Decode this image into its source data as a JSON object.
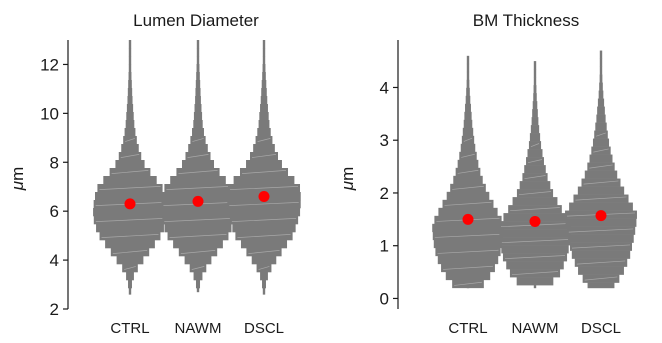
{
  "chart_data": [
    {
      "type": "violin",
      "title": "Lumen Diameter",
      "ylabel_symbol": "μ",
      "ylabel_unit": "m",
      "ylim": [
        2,
        13
      ],
      "yticks": [
        2,
        4,
        6,
        8,
        10,
        12
      ],
      "categories": [
        "CTRL",
        "NAWM",
        "DSCL"
      ],
      "grid": false,
      "colors": {
        "violin": "#7a7a7a",
        "mean_marker": "#ff0000"
      },
      "series": [
        {
          "category": "CTRL",
          "mean": 6.3,
          "profile": [
            [
              2.6,
              0.02
            ],
            [
              3.0,
              0.05
            ],
            [
              3.5,
              0.13
            ],
            [
              4.0,
              0.36
            ],
            [
              4.5,
              0.6
            ],
            [
              5.0,
              0.83
            ],
            [
              5.5,
              0.97
            ],
            [
              6.0,
              1.0
            ],
            [
              6.5,
              0.97
            ],
            [
              7.0,
              0.87
            ],
            [
              7.5,
              0.6
            ],
            [
              8.0,
              0.36
            ],
            [
              8.5,
              0.25
            ],
            [
              9.0,
              0.17
            ],
            [
              9.5,
              0.12
            ],
            [
              10.5,
              0.07
            ],
            [
              11.5,
              0.04
            ],
            [
              12.5,
              0.02
            ],
            [
              13.0,
              0.01
            ]
          ]
        },
        {
          "category": "NAWM",
          "mean": 6.4,
          "profile": [
            [
              2.7,
              0.02
            ],
            [
              3.0,
              0.05
            ],
            [
              3.5,
              0.15
            ],
            [
              4.0,
              0.36
            ],
            [
              4.5,
              0.6
            ],
            [
              5.0,
              0.83
            ],
            [
              5.5,
              0.95
            ],
            [
              6.0,
              1.0
            ],
            [
              6.5,
              0.98
            ],
            [
              7.0,
              0.9
            ],
            [
              7.5,
              0.63
            ],
            [
              8.0,
              0.4
            ],
            [
              8.5,
              0.28
            ],
            [
              9.0,
              0.19
            ],
            [
              9.5,
              0.13
            ],
            [
              10.5,
              0.08
            ],
            [
              11.5,
              0.05
            ],
            [
              12.5,
              0.02
            ],
            [
              13.0,
              0.01
            ]
          ]
        },
        {
          "category": "DSCL",
          "mean": 6.6,
          "profile": [
            [
              2.6,
              0.02
            ],
            [
              3.0,
              0.05
            ],
            [
              3.5,
              0.13
            ],
            [
              4.0,
              0.33
            ],
            [
              4.5,
              0.55
            ],
            [
              5.0,
              0.78
            ],
            [
              5.5,
              0.9
            ],
            [
              6.0,
              0.98
            ],
            [
              6.5,
              1.0
            ],
            [
              7.0,
              0.97
            ],
            [
              7.5,
              0.7
            ],
            [
              8.0,
              0.45
            ],
            [
              8.5,
              0.31
            ],
            [
              9.0,
              0.21
            ],
            [
              9.5,
              0.15
            ],
            [
              10.5,
              0.09
            ],
            [
              11.5,
              0.05
            ],
            [
              12.5,
              0.02
            ],
            [
              13.0,
              0.01
            ]
          ]
        }
      ]
    },
    {
      "type": "violin",
      "title": "BM Thickness",
      "ylabel_symbol": "μ",
      "ylabel_unit": "m",
      "ylim": [
        -0.2,
        4.9
      ],
      "yticks": [
        0,
        1,
        2,
        3,
        4
      ],
      "categories": [
        "CTRL",
        "NAWM",
        "DSCL"
      ],
      "grid": false,
      "colors": {
        "violin": "#7a7a7a",
        "mean_marker": "#ff0000"
      },
      "series": [
        {
          "category": "CTRL",
          "mean": 1.5,
          "profile": [
            [
              0.2,
              0.35
            ],
            [
              0.5,
              0.7
            ],
            [
              0.8,
              0.88
            ],
            [
              1.1,
              0.97
            ],
            [
              1.4,
              1.0
            ],
            [
              1.7,
              0.78
            ],
            [
              2.0,
              0.55
            ],
            [
              2.3,
              0.38
            ],
            [
              2.6,
              0.27
            ],
            [
              2.9,
              0.19
            ],
            [
              3.3,
              0.12
            ],
            [
              3.8,
              0.06
            ],
            [
              4.3,
              0.02
            ],
            [
              4.6,
              0.01
            ]
          ]
        },
        {
          "category": "NAWM",
          "mean": 1.46,
          "profile": [
            [
              0.2,
              0.35
            ],
            [
              0.5,
              0.72
            ],
            [
              0.8,
              0.9
            ],
            [
              1.1,
              0.98
            ],
            [
              1.4,
              1.0
            ],
            [
              1.7,
              0.74
            ],
            [
              2.0,
              0.5
            ],
            [
              2.3,
              0.35
            ],
            [
              2.6,
              0.25
            ],
            [
              2.9,
              0.17
            ],
            [
              3.3,
              0.1
            ],
            [
              3.8,
              0.05
            ],
            [
              4.3,
              0.02
            ],
            [
              4.5,
              0.01
            ]
          ]
        },
        {
          "category": "DSCL",
          "mean": 1.57,
          "profile": [
            [
              0.2,
              0.35
            ],
            [
              0.5,
              0.62
            ],
            [
              0.8,
              0.8
            ],
            [
              1.1,
              0.9
            ],
            [
              1.4,
              0.98
            ],
            [
              1.6,
              1.0
            ],
            [
              1.8,
              0.84
            ],
            [
              2.1,
              0.6
            ],
            [
              2.4,
              0.42
            ],
            [
              2.7,
              0.3
            ],
            [
              3.0,
              0.21
            ],
            [
              3.4,
              0.13
            ],
            [
              3.9,
              0.06
            ],
            [
              4.4,
              0.02
            ],
            [
              4.7,
              0.01
            ]
          ]
        }
      ]
    }
  ]
}
